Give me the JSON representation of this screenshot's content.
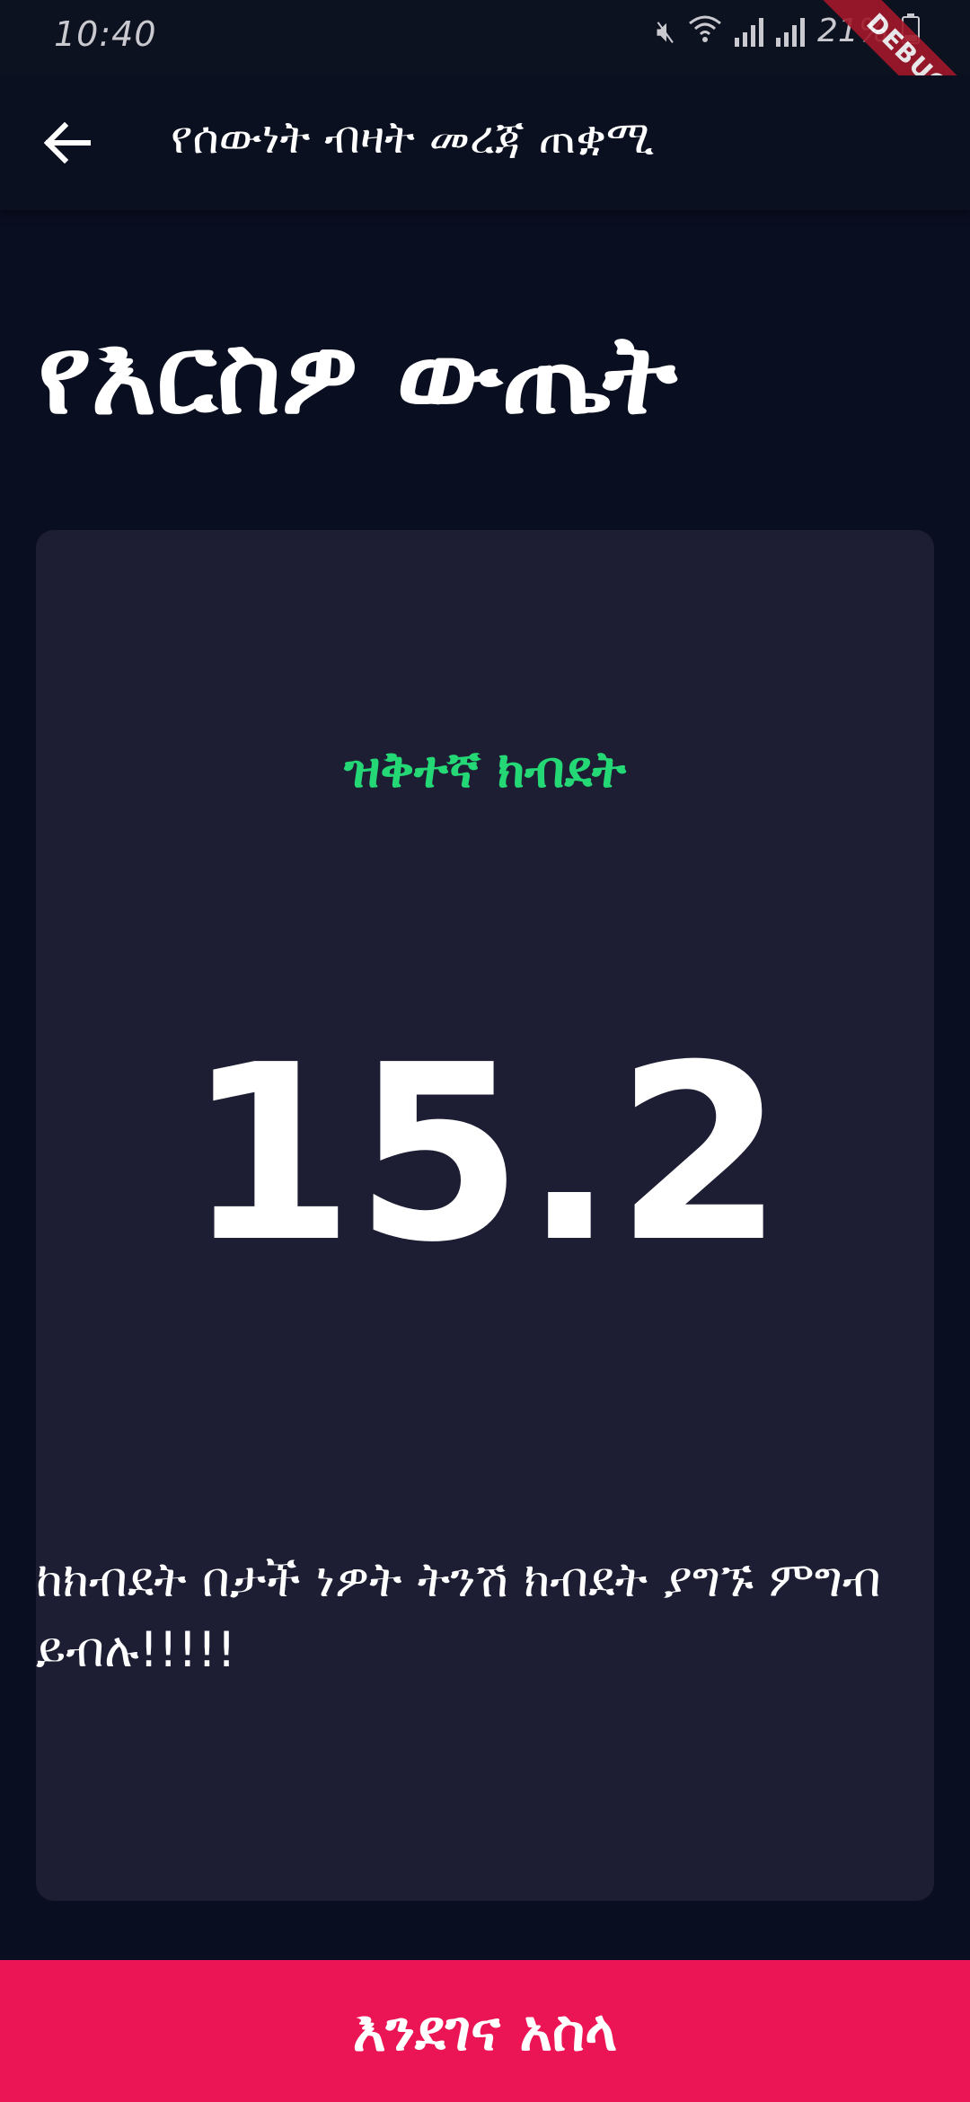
{
  "status_bar": {
    "time": "10:40",
    "battery": "21%",
    "icons": [
      "mute-icon",
      "wifi-icon",
      "signal-icon",
      "signal-icon",
      "battery-icon"
    ]
  },
  "debug_banner": "DEBUG",
  "app_bar": {
    "title": "የሰውነት ብዛት መረጃ ጠቋሚ",
    "back_icon": "arrow-left-icon"
  },
  "page": {
    "heading": "የእርስዎ ውጤት"
  },
  "result": {
    "status": "ዝቅተኛ ክብደት",
    "value": "15.2",
    "advice": "ከክብደት በታች ነዎት ትንሽ ክብደት ያግኙ ምግብ ይብሉ!!!!!"
  },
  "bottom_button": {
    "label": "እንደገና አስላ"
  },
  "colors": {
    "background": "#0a0e21",
    "card": "#1d1e33",
    "status_green": "#24d876",
    "accent_pink": "#eb1555"
  }
}
